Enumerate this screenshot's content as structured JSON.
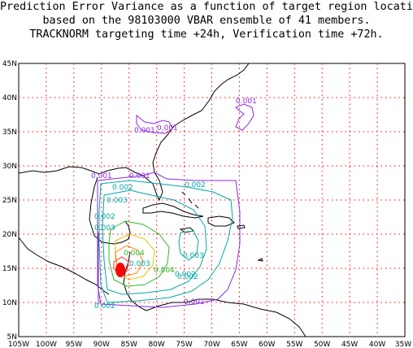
{
  "title": {
    "line1": "Prediction Error Variance as a function of target region location",
    "line2": "based on the 98103000 VBAR ensemble of 41 members.",
    "line3": "TRACKNORM targeting time +24h, Verification time +72h."
  },
  "map": {
    "lon_range": [
      -105,
      -35
    ],
    "lat_range": [
      5,
      45
    ],
    "x_ticks": [
      "105W",
      "100W",
      "95W",
      "90W",
      "85W",
      "80W",
      "75W",
      "70W",
      "65W",
      "60W",
      "55W",
      "50W",
      "45W",
      "40W",
      "35W"
    ],
    "y_ticks": [
      "5N",
      "10N",
      "15N",
      "20N",
      "25N",
      "30N",
      "35N",
      "40N",
      "45N"
    ],
    "grid": "on",
    "grid_color": "#ff0000",
    "coast_color": "#000000"
  },
  "contour_labels": [
    {
      "text": "0.001",
      "color": "#8a2be2"
    },
    {
      "text": "0.001",
      "color": "#8a2be2"
    },
    {
      "text": "0.001",
      "color": "#8a2be2"
    },
    {
      "text": "0.001",
      "color": "#8a2be2"
    },
    {
      "text": "0.001",
      "color": "#8a2be2"
    },
    {
      "text": "0.001",
      "color": "#8a2be2"
    },
    {
      "text": "0.002",
      "color": "#00a8a8"
    },
    {
      "text": "0.002",
      "color": "#00a8a8"
    },
    {
      "text": "0.002",
      "color": "#00a8a8"
    },
    {
      "text": "0.002",
      "color": "#00a8a8"
    },
    {
      "text": "0.002",
      "color": "#00a8a8"
    },
    {
      "text": "0.002",
      "color": "#00a8a8"
    },
    {
      "text": "0.003",
      "color": "#00a8a8"
    },
    {
      "text": "0.003",
      "color": "#00a8a8"
    },
    {
      "text": "0.003",
      "color": "#00a8a8"
    },
    {
      "text": "0.003",
      "color": "#00a8a8"
    },
    {
      "text": "0.004",
      "color": "#2eb82e"
    },
    {
      "text": "0.004",
      "color": "#2eb82e"
    }
  ]
}
